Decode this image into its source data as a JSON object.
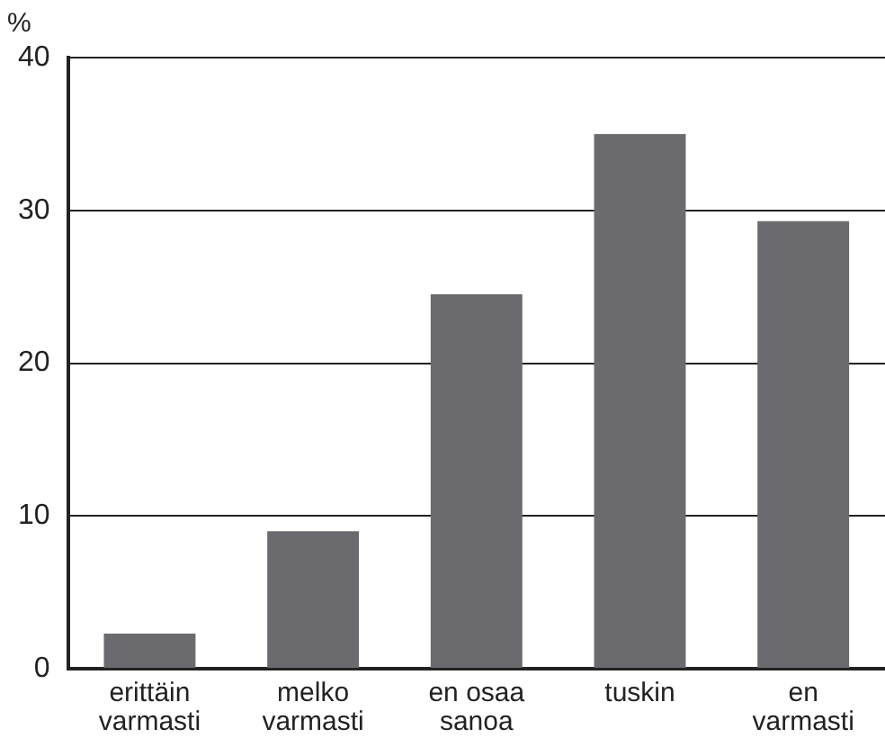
{
  "chart_data": {
    "type": "bar",
    "ylabel": "%",
    "categories": [
      "erittäin\nvarmasti",
      "melko\nvarmasti",
      "en osaa\nsanoa",
      "tuskin",
      "en\nvarmasti"
    ],
    "values": [
      2.3,
      9,
      24.5,
      35,
      29.3
    ],
    "color": "#6b6b6f",
    "ylim": [
      0,
      40
    ],
    "yticks": [
      0,
      10,
      20,
      30,
      40
    ],
    "grid": "y"
  }
}
